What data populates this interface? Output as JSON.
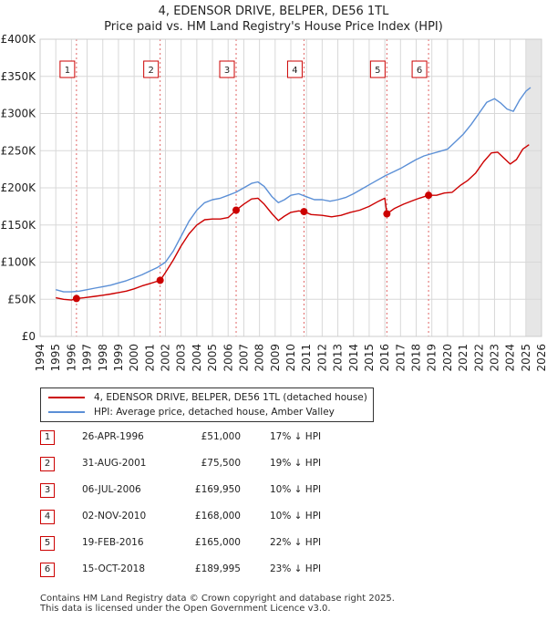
{
  "title": "4, EDENSOR DRIVE, BELPER, DE56 1TL",
  "subtitle": "Price paid vs. HM Land Registry's House Price Index (HPI)",
  "chart_data": {
    "type": "line",
    "xlim": [
      1994,
      2026
    ],
    "ylim": [
      0,
      400000
    ],
    "y_ticks": [
      0,
      50000,
      100000,
      150000,
      200000,
      250000,
      300000,
      350000,
      400000
    ],
    "y_tick_labels": [
      "£0",
      "£50K",
      "£100K",
      "£150K",
      "£200K",
      "£250K",
      "£300K",
      "£350K",
      "£400K"
    ],
    "x_ticks": [
      1994,
      1995,
      1996,
      1997,
      1998,
      1999,
      2000,
      2001,
      2002,
      2003,
      2004,
      2005,
      2006,
      2007,
      2008,
      2009,
      2010,
      2011,
      2012,
      2013,
      2014,
      2015,
      2016,
      2017,
      2018,
      2019,
      2020,
      2021,
      2022,
      2023,
      2024,
      2025,
      2026
    ],
    "x_tick_labels": [
      "1994",
      "1995",
      "1996",
      "1997",
      "1998",
      "1999",
      "2000",
      "2001",
      "2002",
      "2003",
      "2004",
      "2005",
      "2006",
      "2007",
      "2008",
      "2009",
      "2010",
      "2011",
      "2012",
      "2013",
      "2014",
      "2015",
      "2016",
      "2017",
      "2018",
      "2019",
      "2020",
      "2021",
      "2022",
      "2023",
      "2024",
      "2025",
      "2026"
    ],
    "grid": true,
    "shaded_future_from": 2025,
    "series": [
      {
        "name": "4, EDENSOR DRIVE, BELPER, DE56 1TL (detached house)",
        "color": "#cc0000",
        "points": [
          [
            1995.0,
            52000
          ],
          [
            1995.5,
            50000
          ],
          [
            1996.0,
            49000
          ],
          [
            1996.32,
            51000
          ],
          [
            1996.8,
            52000
          ],
          [
            1997.5,
            54000
          ],
          [
            1998.0,
            55500
          ],
          [
            1998.5,
            57000
          ],
          [
            1999.0,
            59000
          ],
          [
            1999.5,
            61000
          ],
          [
            2000.0,
            64000
          ],
          [
            2000.5,
            68000
          ],
          [
            2001.0,
            71000
          ],
          [
            2001.66,
            75500
          ],
          [
            2002.0,
            86000
          ],
          [
            2002.5,
            103000
          ],
          [
            2003.0,
            122000
          ],
          [
            2003.5,
            138000
          ],
          [
            2004.0,
            150000
          ],
          [
            2004.5,
            157000
          ],
          [
            2005.0,
            158000
          ],
          [
            2005.5,
            158000
          ],
          [
            2006.0,
            160000
          ],
          [
            2006.51,
            169950
          ],
          [
            2007.0,
            178000
          ],
          [
            2007.5,
            185000
          ],
          [
            2007.9,
            186000
          ],
          [
            2008.3,
            178000
          ],
          [
            2008.8,
            165000
          ],
          [
            2009.2,
            156000
          ],
          [
            2009.6,
            162000
          ],
          [
            2010.0,
            167000
          ],
          [
            2010.5,
            169000
          ],
          [
            2010.84,
            168000
          ],
          [
            2011.3,
            164000
          ],
          [
            2012.0,
            163000
          ],
          [
            2012.6,
            161000
          ],
          [
            2013.2,
            163000
          ],
          [
            2013.8,
            167000
          ],
          [
            2014.4,
            170000
          ],
          [
            2015.0,
            175000
          ],
          [
            2015.6,
            182000
          ],
          [
            2016.0,
            186000
          ],
          [
            2016.13,
            165000
          ],
          [
            2016.6,
            172000
          ],
          [
            2017.2,
            178000
          ],
          [
            2017.8,
            183000
          ],
          [
            2018.2,
            186000
          ],
          [
            2018.79,
            189995
          ],
          [
            2019.3,
            190000
          ],
          [
            2019.8,
            193000
          ],
          [
            2020.3,
            194000
          ],
          [
            2020.8,
            203000
          ],
          [
            2021.3,
            210000
          ],
          [
            2021.8,
            220000
          ],
          [
            2022.3,
            235000
          ],
          [
            2022.8,
            247000
          ],
          [
            2023.2,
            248000
          ],
          [
            2023.6,
            240000
          ],
          [
            2024.0,
            232000
          ],
          [
            2024.4,
            238000
          ],
          [
            2024.8,
            252000
          ],
          [
            2025.2,
            258000
          ]
        ]
      },
      {
        "name": "HPI: Average price, detached house, Amber Valley",
        "color": "#5b8fd6",
        "points": [
          [
            1995.0,
            63000
          ],
          [
            1995.5,
            60000
          ],
          [
            1996.0,
            60000
          ],
          [
            1996.5,
            61000
          ],
          [
            1997.0,
            63000
          ],
          [
            1997.5,
            65000
          ],
          [
            1998.0,
            67000
          ],
          [
            1998.5,
            69000
          ],
          [
            1999.0,
            72000
          ],
          [
            1999.5,
            75000
          ],
          [
            2000.0,
            79000
          ],
          [
            2000.5,
            83000
          ],
          [
            2001.0,
            88000
          ],
          [
            2001.5,
            93000
          ],
          [
            2002.0,
            100000
          ],
          [
            2002.5,
            115000
          ],
          [
            2003.0,
            135000
          ],
          [
            2003.5,
            155000
          ],
          [
            2004.0,
            170000
          ],
          [
            2004.5,
            180000
          ],
          [
            2005.0,
            184000
          ],
          [
            2005.5,
            186000
          ],
          [
            2006.0,
            190000
          ],
          [
            2006.5,
            194000
          ],
          [
            2007.0,
            200000
          ],
          [
            2007.5,
            206000
          ],
          [
            2007.9,
            208000
          ],
          [
            2008.3,
            202000
          ],
          [
            2008.8,
            188000
          ],
          [
            2009.2,
            180000
          ],
          [
            2009.6,
            184000
          ],
          [
            2010.0,
            190000
          ],
          [
            2010.5,
            192000
          ],
          [
            2011.0,
            188000
          ],
          [
            2011.5,
            184000
          ],
          [
            2012.0,
            184000
          ],
          [
            2012.5,
            182000
          ],
          [
            2013.0,
            184000
          ],
          [
            2013.5,
            187000
          ],
          [
            2014.0,
            192000
          ],
          [
            2014.5,
            198000
          ],
          [
            2015.0,
            204000
          ],
          [
            2015.5,
            210000
          ],
          [
            2016.0,
            216000
          ],
          [
            2016.5,
            221000
          ],
          [
            2017.0,
            226000
          ],
          [
            2017.5,
            232000
          ],
          [
            2018.0,
            238000
          ],
          [
            2018.5,
            243000
          ],
          [
            2019.0,
            246000
          ],
          [
            2019.5,
            249000
          ],
          [
            2020.0,
            252000
          ],
          [
            2020.5,
            262000
          ],
          [
            2021.0,
            272000
          ],
          [
            2021.5,
            285000
          ],
          [
            2022.0,
            300000
          ],
          [
            2022.5,
            315000
          ],
          [
            2023.0,
            320000
          ],
          [
            2023.4,
            314000
          ],
          [
            2023.8,
            306000
          ],
          [
            2024.2,
            303000
          ],
          [
            2024.6,
            318000
          ],
          [
            2025.0,
            330000
          ],
          [
            2025.3,
            335000
          ]
        ]
      }
    ],
    "transactions": [
      {
        "id": "1",
        "x": 1996.32,
        "price": 51000
      },
      {
        "id": "2",
        "x": 2001.66,
        "price": 75500
      },
      {
        "id": "3",
        "x": 2006.51,
        "price": 169950
      },
      {
        "id": "4",
        "x": 2010.84,
        "price": 168000
      },
      {
        "id": "5",
        "x": 2016.13,
        "price": 165000
      },
      {
        "id": "6",
        "x": 2018.79,
        "price": 189995
      }
    ]
  },
  "legend": {
    "property_label": "4, EDENSOR DRIVE, BELPER, DE56 1TL (detached house)",
    "hpi_label": "HPI: Average price, detached house, Amber Valley",
    "property_color": "#cc0000",
    "hpi_color": "#5b8fd6"
  },
  "table": [
    {
      "num": "1",
      "date": "26-APR-1996",
      "price": "£51,000",
      "hpi": "17% ↓ HPI"
    },
    {
      "num": "2",
      "date": "31-AUG-2001",
      "price": "£75,500",
      "hpi": "19% ↓ HPI"
    },
    {
      "num": "3",
      "date": "06-JUL-2006",
      "price": "£169,950",
      "hpi": "10% ↓ HPI"
    },
    {
      "num": "4",
      "date": "02-NOV-2010",
      "price": "£168,000",
      "hpi": "10% ↓ HPI"
    },
    {
      "num": "5",
      "date": "19-FEB-2016",
      "price": "£165,000",
      "hpi": "22% ↓ HPI"
    },
    {
      "num": "6",
      "date": "15-OCT-2018",
      "price": "£189,995",
      "hpi": "23% ↓ HPI"
    }
  ],
  "footer": {
    "line1": "Contains HM Land Registry data © Crown copyright and database right 2025.",
    "line2": "This data is licensed under the Open Government Licence v3.0."
  }
}
